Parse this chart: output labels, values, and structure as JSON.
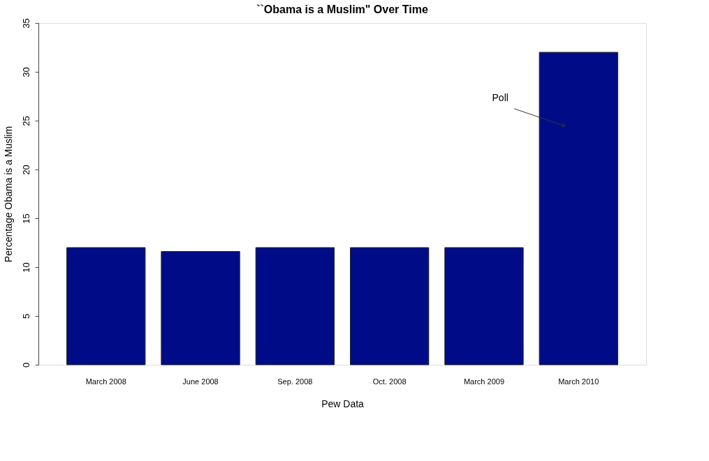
{
  "chart_data": {
    "type": "bar",
    "title": "``Obama is a Muslim\" Over Time",
    "xlabel": "Pew Data",
    "ylabel": "Percentage Obama is a Muslim",
    "categories": [
      "March 2008",
      "June 2008",
      "Sep. 2008",
      "Oct. 2008",
      "March 2009",
      "March 2010"
    ],
    "values": [
      12,
      11.6,
      12,
      12,
      12,
      32
    ],
    "color": "#000c87",
    "ylim": [
      0,
      35
    ],
    "yticks": [
      0,
      5,
      10,
      15,
      20,
      25,
      30,
      35
    ],
    "grid": false,
    "annotations": [
      "Poll"
    ]
  }
}
